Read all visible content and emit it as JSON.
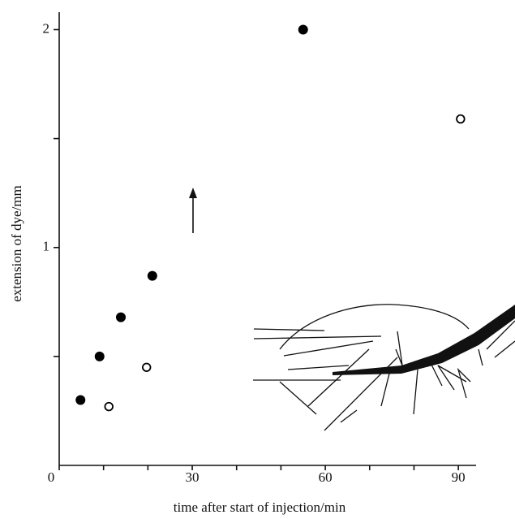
{
  "chart_data": {
    "type": "scatter",
    "xlabel": "time after start of injection/min",
    "ylabel": "extension of dye/mm",
    "xlim": [
      0,
      94
    ],
    "ylim": [
      0,
      2.08
    ],
    "xticks": [
      0,
      30,
      60,
      90
    ],
    "xminorticks": [
      10,
      20,
      40,
      50,
      70,
      80
    ],
    "yticks": [
      1,
      2
    ],
    "yminorticks": [
      0.5,
      1.5
    ],
    "series": [
      {
        "color": "#000000",
        "filled": true,
        "x": [
          4.8,
          9.1,
          13.9,
          21.0,
          55.0
        ],
        "values": [
          0.3,
          0.5,
          0.68,
          0.87,
          2.0
        ]
      },
      {
        "color": "#000000",
        "filled": false,
        "x": [
          11.2,
          19.7,
          90.5
        ],
        "values": [
          0.27,
          0.45,
          1.59
        ]
      }
    ]
  }
}
